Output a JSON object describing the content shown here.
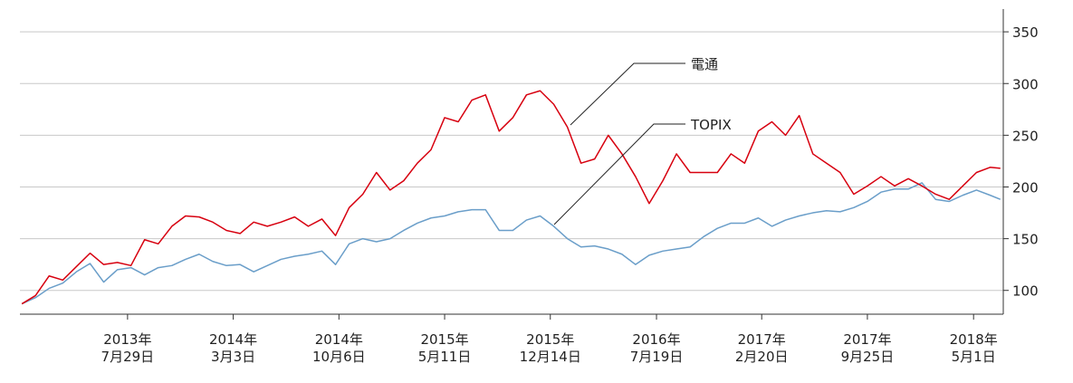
{
  "chart_data": {
    "type": "line",
    "x": [
      "2012-12-24",
      "2013-01-21",
      "2013-02-18",
      "2013-03-18",
      "2013-04-15",
      "2013-05-13",
      "2013-06-10",
      "2013-07-08",
      "2013-08-05",
      "2013-09-02",
      "2013-09-30",
      "2013-10-28",
      "2013-11-25",
      "2013-12-23",
      "2014-01-20",
      "2014-02-17",
      "2014-03-17",
      "2014-04-14",
      "2014-05-12",
      "2014-06-09",
      "2014-07-07",
      "2014-08-04",
      "2014-09-01",
      "2014-09-29",
      "2014-10-27",
      "2014-11-24",
      "2014-12-22",
      "2015-01-19",
      "2015-02-16",
      "2015-03-16",
      "2015-04-13",
      "2015-05-11",
      "2015-06-08",
      "2015-07-06",
      "2015-08-03",
      "2015-08-31",
      "2015-09-28",
      "2015-10-26",
      "2015-11-23",
      "2015-12-21",
      "2016-01-18",
      "2016-02-15",
      "2016-03-14",
      "2016-04-11",
      "2016-05-09",
      "2016-06-06",
      "2016-07-04",
      "2016-08-01",
      "2016-08-29",
      "2016-09-26",
      "2016-10-24",
      "2016-11-21",
      "2016-12-19",
      "2017-01-16",
      "2017-02-13",
      "2017-03-13",
      "2017-04-10",
      "2017-05-08",
      "2017-06-05",
      "2017-07-03",
      "2017-07-31",
      "2017-08-28",
      "2017-09-25",
      "2017-10-23",
      "2017-11-20",
      "2017-12-18",
      "2018-01-15",
      "2018-02-12",
      "2018-03-12",
      "2018-04-09",
      "2018-05-07",
      "2018-06-04",
      "2018-06-25"
    ],
    "series": [
      {
        "name": "電通",
        "color": "#d7000f",
        "values": [
          87,
          95,
          114,
          110,
          123,
          136,
          125,
          127,
          124,
          149,
          145,
          162,
          172,
          171,
          166,
          158,
          155,
          166,
          162,
          166,
          171,
          162,
          169,
          153,
          180,
          193,
          214,
          197,
          206,
          223,
          236,
          267,
          263,
          284,
          289,
          254,
          267,
          289,
          293,
          280,
          258,
          223,
          227,
          250,
          232,
          210,
          184,
          206,
          232,
          214,
          214,
          214,
          232,
          223,
          254,
          263,
          250,
          269,
          232,
          223,
          214,
          193,
          201,
          210,
          201,
          208,
          201,
          193,
          188,
          201,
          214,
          219,
          218
        ]
      },
      {
        "name": "TOPIX",
        "color": "#6a9ec9",
        "values": [
          87,
          93,
          102,
          107,
          118,
          126,
          108,
          120,
          122,
          115,
          122,
          124,
          130,
          135,
          128,
          124,
          125,
          118,
          124,
          130,
          133,
          135,
          138,
          125,
          145,
          150,
          147,
          150,
          158,
          165,
          170,
          172,
          176,
          178,
          178,
          158,
          158,
          168,
          172,
          162,
          150,
          142,
          143,
          140,
          135,
          125,
          134,
          138,
          140,
          142,
          152,
          160,
          165,
          165,
          170,
          162,
          168,
          172,
          175,
          177,
          176,
          180,
          186,
          195,
          198,
          198,
          204,
          188,
          186,
          192,
          197,
          192,
          188
        ]
      }
    ],
    "xlim": [
      "2012-12-20",
      "2018-07-01"
    ],
    "xticks": [
      {
        "value": "2013-07-29",
        "label": "2013年\n7月29日"
      },
      {
        "value": "2014-03-03",
        "label": "2014年\n3月3日"
      },
      {
        "value": "2014-10-06",
        "label": "2014年\n10月6日"
      },
      {
        "value": "2015-05-11",
        "label": "2015年\n5月11日"
      },
      {
        "value": "2015-12-14",
        "label": "2015年\n12月14日"
      },
      {
        "value": "2016-07-19",
        "label": "2016年\n7月19日"
      },
      {
        "value": "2017-02-20",
        "label": "2017年\n2月20日"
      },
      {
        "value": "2017-09-25",
        "label": "2017年\n9月25日"
      },
      {
        "value": "2018-05-01",
        "label": "2018年\n5月1日"
      }
    ],
    "ylim": [
      77,
      372
    ],
    "yticks": [
      100,
      150,
      200,
      250,
      300,
      350
    ],
    "grid": true
  }
}
